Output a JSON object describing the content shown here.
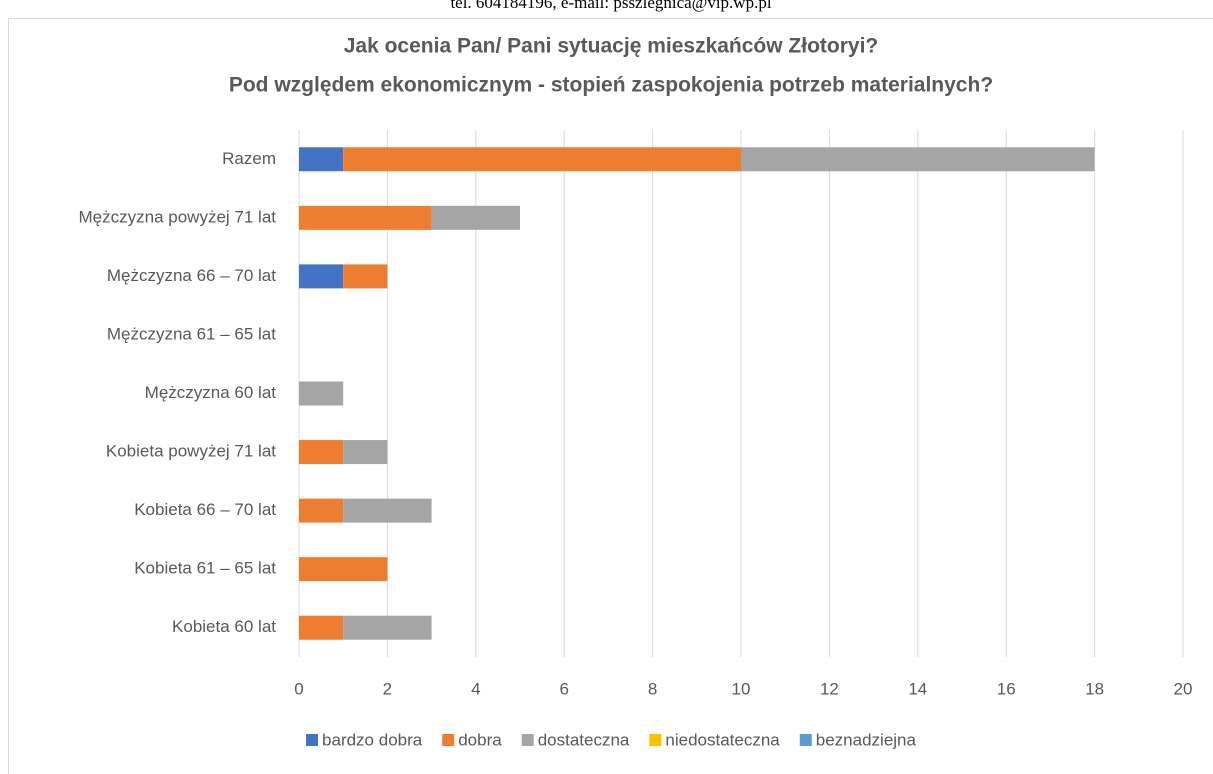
{
  "header": {
    "text": "tel. 604184196, e-mail: psszlegnica@vip.wp.pl"
  },
  "chart_data": {
    "type": "stacked_barh",
    "title": "Jak ocenia Pan/ Pani sytuację mieszkańców Złotoryi?",
    "subtitle": "Pod względem ekonomicznym - stopień zaspokojenia potrzeb materialnych?",
    "categories": [
      "Razem",
      "Mężczyzna powyżej 71 lat",
      "Mężczyzna 66 – 70 lat",
      "Mężczyzna 61 – 65 lat",
      "Mężczyzna 60 lat",
      "Kobieta powyżej 71 lat",
      "Kobieta 66 – 70 lat",
      "Kobieta 61 – 65 lat",
      "Kobieta 60 lat"
    ],
    "series": [
      {
        "name": "bardzo dobra",
        "color": "#4472c4",
        "values": [
          1,
          0,
          1,
          0,
          0,
          0,
          0,
          0,
          0
        ]
      },
      {
        "name": "dobra",
        "color": "#ed7d31",
        "values": [
          9,
          3,
          1,
          0,
          0,
          1,
          1,
          2,
          1
        ]
      },
      {
        "name": "dostateczna",
        "color": "#a5a5a5",
        "values": [
          8,
          2,
          0,
          0,
          1,
          1,
          2,
          0,
          2
        ]
      },
      {
        "name": "niedostateczna",
        "color": "#ffc000",
        "values": [
          0,
          0,
          0,
          0,
          0,
          0,
          0,
          0,
          0
        ]
      },
      {
        "name": "beznadziejna",
        "color": "#5b9bd5",
        "values": [
          0,
          0,
          0,
          0,
          0,
          0,
          0,
          0,
          0
        ]
      }
    ],
    "xlim": [
      0,
      20
    ],
    "xticks": [
      0,
      2,
      4,
      6,
      8,
      10,
      12,
      14,
      16,
      18,
      20
    ],
    "grid": true,
    "legend": "bottom"
  }
}
